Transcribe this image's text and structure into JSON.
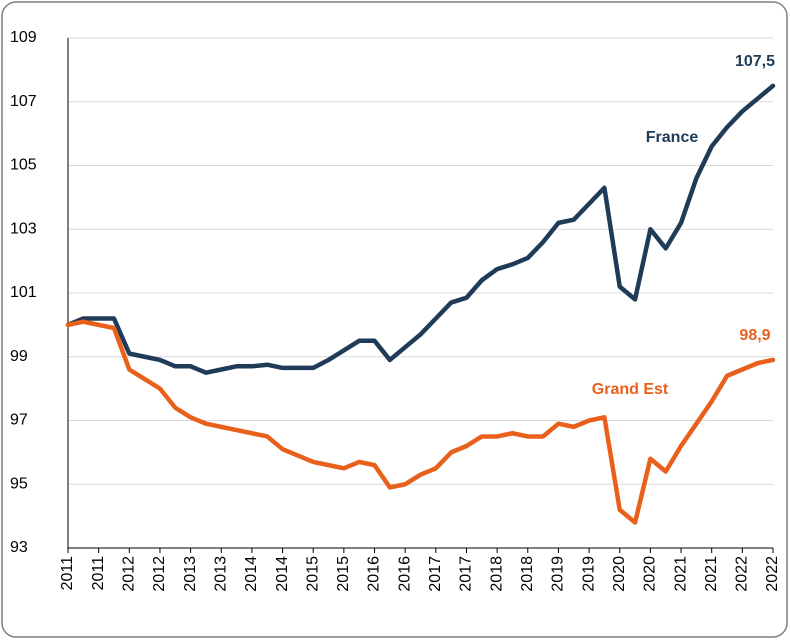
{
  "chart_data": {
    "type": "line",
    "categories": [
      "2011",
      null,
      "2011",
      null,
      "2012",
      null,
      "2012",
      null,
      "2013",
      null,
      "2013",
      null,
      "2014",
      null,
      "2014",
      null,
      "2015",
      null,
      "2015",
      null,
      "2016",
      null,
      "2016",
      null,
      "2017",
      null,
      "2017",
      null,
      "2018",
      null,
      "2018",
      null,
      "2019",
      null,
      "2019",
      null,
      "2020",
      null,
      "2020",
      null,
      "2021",
      null,
      "2021",
      null,
      "2022",
      null,
      "2022"
    ],
    "series": [
      {
        "name": "France",
        "color": "#1f3b57",
        "values": [
          100.0,
          100.2,
          100.2,
          100.2,
          99.1,
          99.0,
          98.9,
          98.7,
          98.7,
          98.5,
          98.6,
          98.7,
          98.7,
          98.75,
          98.65,
          98.65,
          98.65,
          98.9,
          99.2,
          99.5,
          99.5,
          98.9,
          99.3,
          99.7,
          100.2,
          100.7,
          100.85,
          101.4,
          101.75,
          101.9,
          102.1,
          102.6,
          103.2,
          103.3,
          103.8,
          104.3,
          101.2,
          100.8,
          103.0,
          102.4,
          103.2,
          104.6,
          105.6,
          106.2,
          106.7,
          107.1,
          107.5
        ],
        "value_labels": [
          null,
          null,
          null,
          null,
          null,
          null,
          null,
          null,
          null,
          null,
          null,
          null,
          null,
          null,
          null,
          null,
          null,
          null,
          null,
          null,
          null,
          null,
          null,
          null,
          null,
          null,
          null,
          null,
          null,
          null,
          null,
          null,
          null,
          null,
          null,
          null,
          null,
          null,
          null,
          null,
          null,
          null,
          null,
          null,
          null,
          null,
          "107,5"
        ]
      },
      {
        "name": "Grand Est",
        "color": "#e8601c",
        "values": [
          100.0,
          100.1,
          100.0,
          99.9,
          98.6,
          98.3,
          98.0,
          97.4,
          97.1,
          96.9,
          96.8,
          96.7,
          96.6,
          96.5,
          96.1,
          95.9,
          95.7,
          95.6,
          95.5,
          95.7,
          95.6,
          94.9,
          95.0,
          95.3,
          95.5,
          96.0,
          96.2,
          96.5,
          96.5,
          96.6,
          96.5,
          96.5,
          96.9,
          96.8,
          97.0,
          97.1,
          94.2,
          93.8,
          95.8,
          95.4,
          96.2,
          96.9,
          97.6,
          98.4,
          98.6,
          98.8,
          98.9
        ],
        "value_labels": [
          null,
          null,
          null,
          null,
          null,
          null,
          null,
          null,
          null,
          null,
          null,
          null,
          null,
          null,
          null,
          null,
          null,
          null,
          null,
          null,
          null,
          null,
          null,
          null,
          null,
          null,
          null,
          null,
          null,
          null,
          null,
          null,
          null,
          null,
          null,
          null,
          null,
          null,
          null,
          null,
          null,
          null,
          null,
          null,
          null,
          null,
          "98,9"
        ]
      }
    ],
    "ylim": [
      93,
      109
    ],
    "yticks": [
      93,
      95,
      97,
      99,
      101,
      103,
      105,
      107,
      109
    ],
    "grid": true
  }
}
